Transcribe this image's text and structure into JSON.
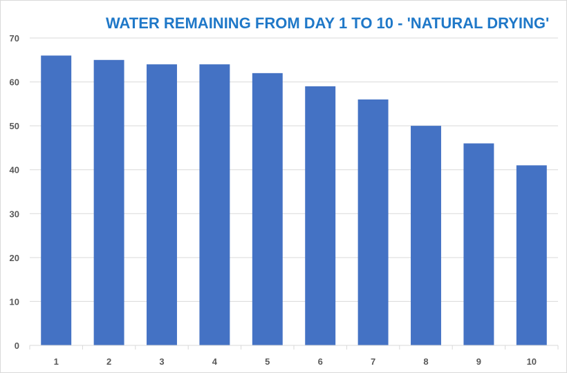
{
  "chart_data": {
    "type": "bar",
    "title": "WATER REMAINING FROM DAY 1 TO 10 - 'NATURAL DRYING'",
    "xlabel": "",
    "ylabel": "",
    "categories": [
      "1",
      "2",
      "3",
      "4",
      "5",
      "6",
      "7",
      "8",
      "9",
      "10"
    ],
    "values": [
      66,
      65,
      64,
      64,
      62,
      59,
      56,
      50,
      46,
      41
    ],
    "ylim": [
      0,
      70
    ],
    "yticks": [
      "0",
      "10",
      "20",
      "30",
      "40",
      "50",
      "60",
      "70"
    ],
    "grid": true,
    "legend": "none",
    "bar_color": "#4472c4",
    "grid_color": "#d9d9d9",
    "title_color": "#1f78c8"
  }
}
